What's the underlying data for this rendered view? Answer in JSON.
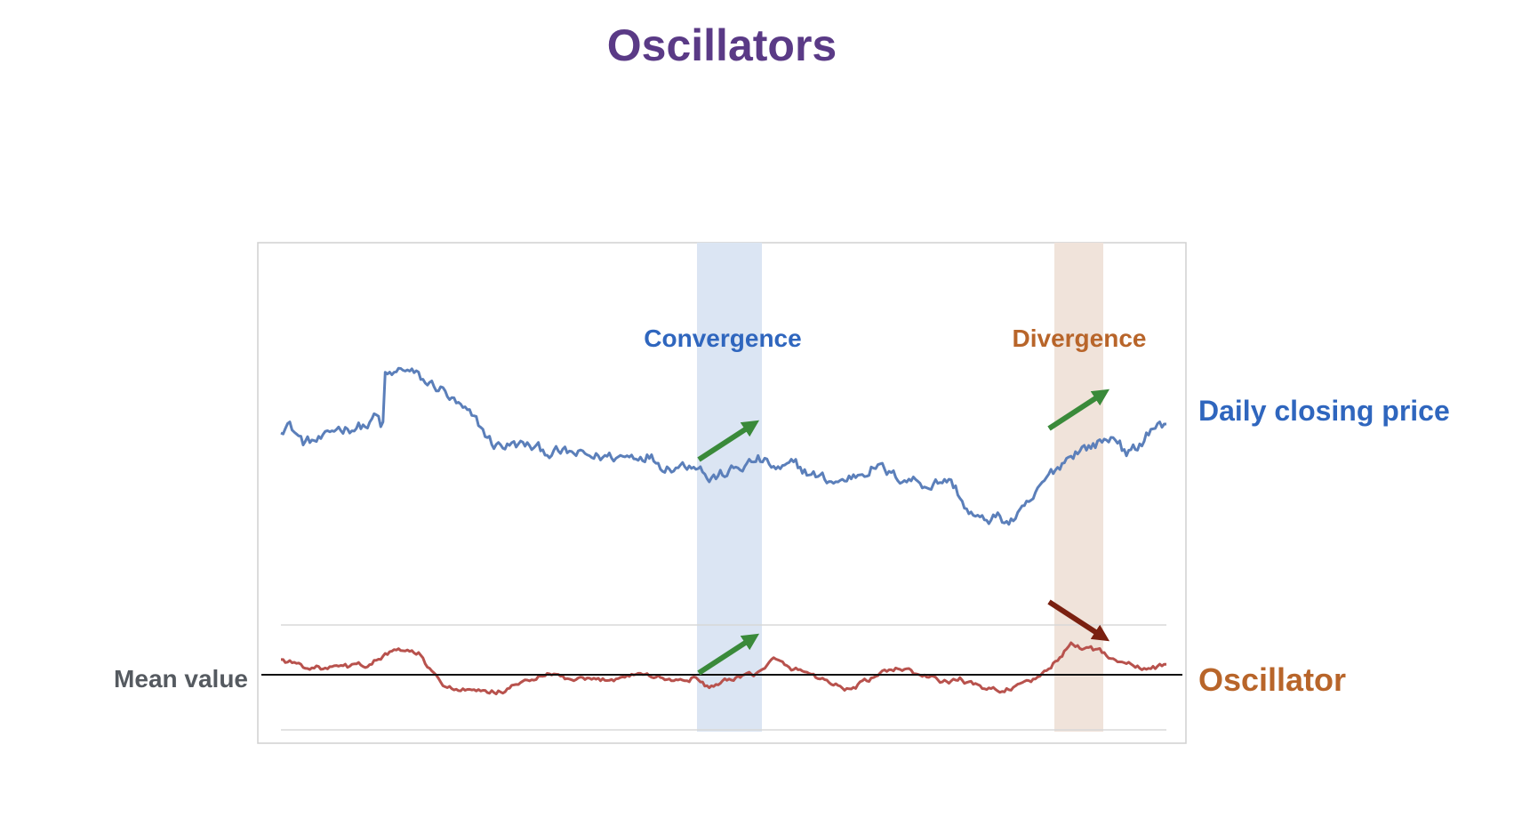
{
  "page": {
    "title": "Oscillators"
  },
  "colors": {
    "title": "#5a3a86",
    "price_line": "#5b7fba",
    "oscillator_line": "#b8524d",
    "convergence_band": "#dbe5f3",
    "divergence_band": "#f0e3da",
    "convergence_label": "#2f66be",
    "divergence_label": "#b8652a",
    "daily_label": "#2f66be",
    "oscillator_label": "#b8652a",
    "mean_label": "#555a60",
    "green_arrow": "#3a8a3a",
    "red_arrow": "#7a2010",
    "frame": "#d0d0d0",
    "guide": "#d8d8d8",
    "mean_line": "#111111"
  },
  "chart_data": {
    "type": "line",
    "title": "Oscillators",
    "xlabel": "",
    "ylabel": "",
    "axes_visible": false,
    "grid": false,
    "x_points": 400,
    "series": [
      {
        "name": "Daily closing price",
        "panel": "top",
        "description_values": "synthetic trend: flat, spike, decline, dip, recovery",
        "keyframes": [
          [
            0,
            0.62
          ],
          [
            3,
            0.64
          ],
          [
            10,
            0.57
          ],
          [
            20,
            0.58
          ],
          [
            25,
            0.62
          ],
          [
            40,
            0.63
          ],
          [
            42,
            0.66
          ],
          [
            44,
            0.65
          ],
          [
            45,
            0.63
          ],
          [
            46,
            0.63
          ],
          [
            47,
            0.8
          ],
          [
            52,
            0.81
          ],
          [
            55,
            0.83
          ],
          [
            60,
            0.81
          ],
          [
            65,
            0.78
          ],
          [
            72,
            0.76
          ],
          [
            78,
            0.71
          ],
          [
            88,
            0.64
          ],
          [
            96,
            0.56
          ],
          [
            110,
            0.56
          ],
          [
            118,
            0.54
          ],
          [
            130,
            0.53
          ],
          [
            140,
            0.52
          ],
          [
            155,
            0.52
          ],
          [
            165,
            0.53
          ],
          [
            172,
            0.49
          ],
          [
            180,
            0.49
          ],
          [
            188,
            0.5
          ],
          [
            193,
            0.44
          ],
          [
            200,
            0.46
          ],
          [
            210,
            0.49
          ],
          [
            215,
            0.51
          ],
          [
            220,
            0.49
          ],
          [
            225,
            0.47
          ],
          [
            232,
            0.49
          ],
          [
            238,
            0.46
          ],
          [
            245,
            0.44
          ],
          [
            252,
            0.43
          ],
          [
            260,
            0.46
          ],
          [
            268,
            0.49
          ],
          [
            276,
            0.45
          ],
          [
            285,
            0.44
          ],
          [
            292,
            0.42
          ],
          [
            300,
            0.44
          ],
          [
            304,
            0.41
          ],
          [
            310,
            0.32
          ],
          [
            316,
            0.29
          ],
          [
            322,
            0.31
          ],
          [
            328,
            0.29
          ],
          [
            334,
            0.32
          ],
          [
            340,
            0.38
          ],
          [
            345,
            0.44
          ],
          [
            352,
            0.5
          ],
          [
            358,
            0.54
          ],
          [
            366,
            0.56
          ],
          [
            372,
            0.58
          ],
          [
            377,
            0.59
          ],
          [
            381,
            0.52
          ],
          [
            386,
            0.55
          ],
          [
            392,
            0.62
          ],
          [
            396,
            0.63
          ],
          [
            399,
            0.62
          ]
        ]
      },
      {
        "name": "Oscillator",
        "panel": "bottom",
        "keyframes": [
          [
            0,
            0.6
          ],
          [
            10,
            0.56
          ],
          [
            20,
            0.54
          ],
          [
            30,
            0.55
          ],
          [
            40,
            0.57
          ],
          [
            48,
            0.64
          ],
          [
            55,
            0.66
          ],
          [
            62,
            0.64
          ],
          [
            66,
            0.55
          ],
          [
            72,
            0.44
          ],
          [
            80,
            0.4
          ],
          [
            92,
            0.38
          ],
          [
            102,
            0.4
          ],
          [
            112,
            0.47
          ],
          [
            122,
            0.5
          ],
          [
            132,
            0.46
          ],
          [
            142,
            0.46
          ],
          [
            152,
            0.48
          ],
          [
            160,
            0.51
          ],
          [
            168,
            0.49
          ],
          [
            178,
            0.46
          ],
          [
            186,
            0.48
          ],
          [
            192,
            0.42
          ],
          [
            200,
            0.45
          ],
          [
            210,
            0.49
          ],
          [
            216,
            0.52
          ],
          [
            222,
            0.6
          ],
          [
            228,
            0.55
          ],
          [
            236,
            0.52
          ],
          [
            246,
            0.46
          ],
          [
            256,
            0.4
          ],
          [
            264,
            0.46
          ],
          [
            272,
            0.51
          ],
          [
            278,
            0.55
          ],
          [
            285,
            0.51
          ],
          [
            292,
            0.48
          ],
          [
            300,
            0.45
          ],
          [
            306,
            0.47
          ],
          [
            312,
            0.43
          ],
          [
            318,
            0.41
          ],
          [
            324,
            0.4
          ],
          [
            330,
            0.42
          ],
          [
            338,
            0.44
          ],
          [
            344,
            0.52
          ],
          [
            350,
            0.6
          ],
          [
            356,
            0.7
          ],
          [
            362,
            0.68
          ],
          [
            368,
            0.66
          ],
          [
            374,
            0.62
          ],
          [
            380,
            0.58
          ],
          [
            388,
            0.54
          ],
          [
            394,
            0.55
          ],
          [
            399,
            0.57
          ]
        ]
      }
    ],
    "regions": [
      {
        "label": "Convergence",
        "x_start": 186,
        "x_end": 214
      },
      {
        "label": "Divergence",
        "x_start": 346,
        "x_end": 367
      }
    ],
    "reference_lines": [
      {
        "label": "Mean value",
        "panel": "bottom",
        "y": 0.5
      }
    ],
    "annotations": [
      {
        "text": "Daily closing price",
        "target": "price series"
      },
      {
        "text": "Oscillator",
        "target": "oscillator series"
      },
      {
        "text": "Mean value",
        "target": "mean line"
      }
    ]
  },
  "labels": {
    "convergence": "Convergence",
    "divergence": "Divergence",
    "daily_closing_price": "Daily closing price",
    "oscillator": "Oscillator",
    "mean_value": "Mean value"
  }
}
